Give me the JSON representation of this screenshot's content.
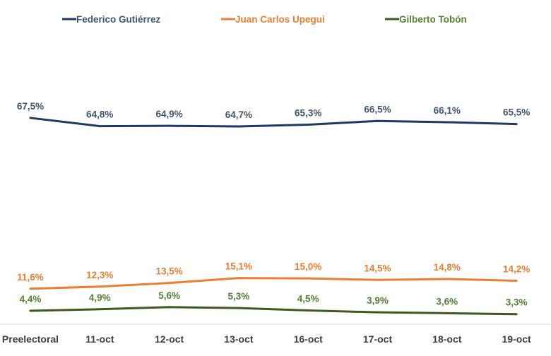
{
  "chart_data": {
    "type": "line",
    "title": "",
    "xlabel": "",
    "ylabel": "",
    "categories": [
      "Preelectoral",
      "11-oct",
      "12-oct",
      "13-oct",
      "16-oct",
      "17-oct",
      "18-oct",
      "19-oct"
    ],
    "ylim": [
      0,
      72
    ],
    "grid": false,
    "legend_position": "top",
    "series": [
      {
        "name": "Federico Gutiérrez",
        "color": "#1f3864",
        "label_color": "#44546a",
        "values": [
          67.5,
          64.8,
          64.9,
          64.7,
          65.3,
          66.5,
          66.1,
          65.5
        ],
        "labels": [
          "67,5%",
          "64,8%",
          "64,9%",
          "64,7%",
          "65,3%",
          "66,5%",
          "66,1%",
          "65,5%"
        ]
      },
      {
        "name": "Juan Carlos Upegui",
        "color": "#ed7d31",
        "label_color": "#ed7d31",
        "values": [
          11.6,
          12.3,
          13.5,
          15.1,
          15.0,
          14.5,
          14.8,
          14.2
        ],
        "labels": [
          "11,6%",
          "12,3%",
          "13,5%",
          "15,1%",
          "15,0%",
          "14,5%",
          "14,8%",
          "14,2%"
        ]
      },
      {
        "name": "Gilberto Tobón",
        "color": "#3f5a1f",
        "label_color": "#548235",
        "values": [
          4.4,
          4.9,
          5.6,
          5.3,
          4.5,
          3.9,
          3.6,
          3.3
        ],
        "labels": [
          "4,4%",
          "4,9%",
          "5,6%",
          "5,3%",
          "4,5%",
          "3,9%",
          "3,6%",
          "3,3%"
        ]
      }
    ]
  }
}
